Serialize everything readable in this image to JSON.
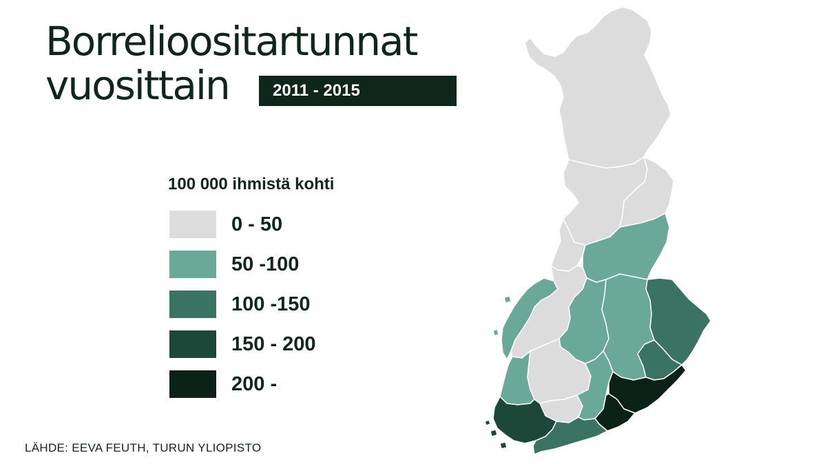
{
  "title": {
    "line1": "Borrelioositartunnat",
    "line2": "vuosittain",
    "period": "2011 - 2015"
  },
  "legend": {
    "title": "100 000 ihmistä kohti",
    "classes": [
      {
        "label": "0 - 50",
        "color": "#dcdcdc"
      },
      {
        "label": "50 -100",
        "color": "#6aa898"
      },
      {
        "label": "100 -150",
        "color": "#3b7362"
      },
      {
        "label": "150 - 200",
        "color": "#1c4739"
      },
      {
        "label": "200 -",
        "color": "#0b2219"
      }
    ]
  },
  "source": "LÄHDE: EEVA FEUTH, TURUN YLIOPISTO",
  "map": {
    "type": "choropleth",
    "country": "Finland",
    "regions": [
      {
        "id": "lappi",
        "class": 0
      },
      {
        "id": "pohjois-pohjanmaa",
        "class": 0
      },
      {
        "id": "kainuu",
        "class": 0
      },
      {
        "id": "keski-pohjanmaa",
        "class": 0
      },
      {
        "id": "etela-pohjanmaa",
        "class": 0
      },
      {
        "id": "pirkanmaa",
        "class": 0
      },
      {
        "id": "kanta-hame",
        "class": 0
      },
      {
        "id": "pohjanmaa",
        "class": 1
      },
      {
        "id": "satakunta",
        "class": 1
      },
      {
        "id": "keski-suomi",
        "class": 1
      },
      {
        "id": "pohjois-savo",
        "class": 1
      },
      {
        "id": "etela-savo",
        "class": 1
      },
      {
        "id": "paijat-hame",
        "class": 1
      },
      {
        "id": "pohjois-karjala",
        "class": 2
      },
      {
        "id": "savonlinna-area",
        "class": 2
      },
      {
        "id": "uusimaa",
        "class": 2
      },
      {
        "id": "varsinais-suomi",
        "class": 3
      },
      {
        "id": "kymenlaakso",
        "class": 4
      },
      {
        "id": "etela-karjala",
        "class": 4
      }
    ]
  }
}
